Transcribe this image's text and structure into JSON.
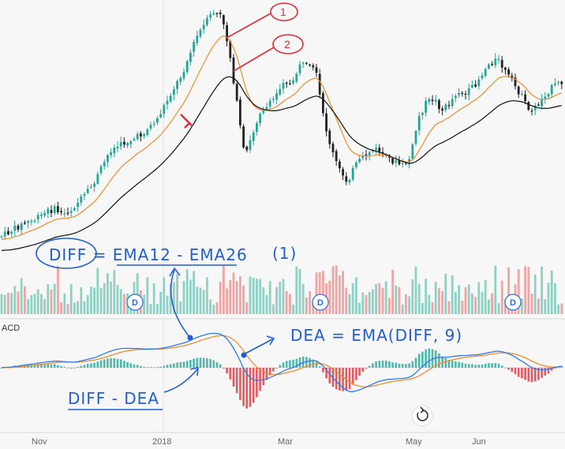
{
  "chart_data": [
    {
      "type": "candlestick",
      "title": "",
      "xaxis_ticks": [
        "Nov",
        "2018",
        "Mar",
        "May",
        "Jun"
      ],
      "series": [
        {
          "name": "",
          "kind": "price-path",
          "x": [
            0,
            10,
            20,
            30,
            40,
            50,
            60,
            70,
            80,
            90,
            100,
            110,
            120,
            130,
            140,
            150,
            160,
            170,
            180,
            190,
            200,
            210,
            220,
            230,
            240,
            250,
            260,
            270,
            280,
            290,
            300,
            310,
            320,
            330,
            340,
            350,
            360,
            370,
            380,
            390,
            400,
            410,
            420,
            430,
            440,
            450,
            460,
            470,
            480,
            490,
            500,
            510,
            520,
            530,
            540,
            550,
            560,
            570,
            580,
            590,
            600,
            610,
            620,
            630,
            640,
            650,
            660,
            670,
            680,
            690,
            700,
            710
          ],
          "y": [
            300,
            295,
            289,
            283,
            280,
            275,
            268,
            265,
            272,
            266,
            255,
            245,
            230,
            210,
            190,
            185,
            180,
            176,
            170,
            160,
            150,
            130,
            112,
            95,
            70,
            45,
            30,
            15,
            20,
            60,
            130,
            200,
            170,
            140,
            135,
            120,
            100,
            110,
            80,
            85,
            90,
            150,
            190,
            215,
            230,
            210,
            200,
            190,
            190,
            200,
            205,
            210,
            200,
            150,
            130,
            125,
            140,
            130,
            115,
            120,
            110,
            95,
            80,
            75,
            90,
            105,
            120,
            140,
            135,
            120,
            110,
            105
          ]
        },
        {
          "name": "",
          "kind": "ema-fast",
          "values_note": ""
        },
        {
          "name": "",
          "kind": "ema-slow",
          "values_note": ""
        }
      ]
    },
    {
      "type": "bar",
      "title": "",
      "series": [
        {
          "name": "",
          "values": []
        }
      ]
    },
    {
      "type": "line",
      "title": "",
      "panel_label": "ACD",
      "series": [
        {
          "name": "",
          "color": "#2f7be8"
        },
        {
          "name": "",
          "color": "#f08c2e"
        }
      ]
    }
  ],
  "annotations": {
    "diff_formula": "DIFF = EMA12 - EMA26",
    "diff_circle_mark": "(1)",
    "dea_formula": "DEA = EMA(DIFF, 9)",
    "hist_formula": "DIFF - DEA",
    "marker_1": "1",
    "marker_2": "2",
    "dividend_marker": "D"
  },
  "colors": {
    "up": "#26a69a",
    "down": "#222222",
    "vol_up": "#8fd1c5",
    "vol_down": "#f0a4a4",
    "ema_fast": "#f08c2e",
    "ema_slow": "#111111",
    "diff": "#2f7be8",
    "dea": "#f08c2e",
    "annot": "#1f5fd6",
    "annot_red": "#e0303a"
  }
}
